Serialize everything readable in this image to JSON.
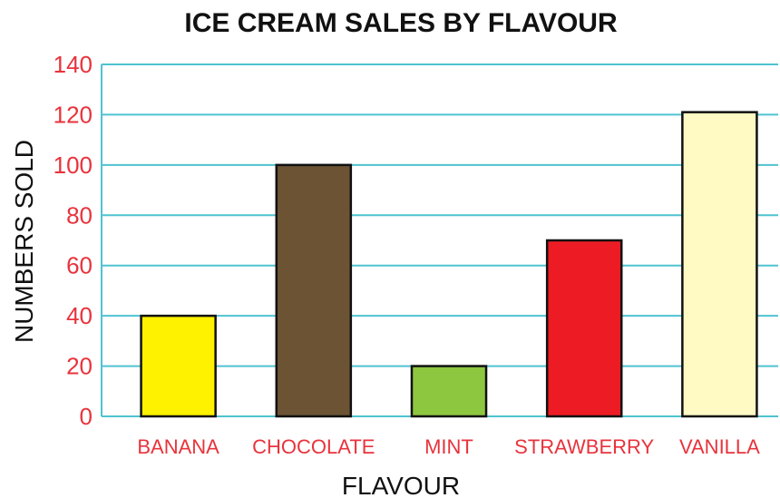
{
  "chart_data": {
    "type": "bar",
    "title": "ICE CREAM SALES BY FLAVOUR",
    "xlabel": "FLAVOUR",
    "ylabel": "NUMBERS SOLD",
    "categories": [
      "BANANA",
      "CHOCOLATE",
      "MINT",
      "STRAWBERRY",
      "VANILLA"
    ],
    "values": [
      40,
      100,
      20,
      70,
      121
    ],
    "bar_colors": [
      "#fff200",
      "#6b5333",
      "#8dc63f",
      "#ed1c24",
      "#fff9c4"
    ],
    "ylim": [
      0,
      140
    ],
    "yticks": [
      0,
      20,
      40,
      60,
      80,
      100,
      120,
      140
    ],
    "grid": true,
    "grid_color": "#4fc3d0",
    "tick_label_color": "#e8333c",
    "legend": "none"
  }
}
